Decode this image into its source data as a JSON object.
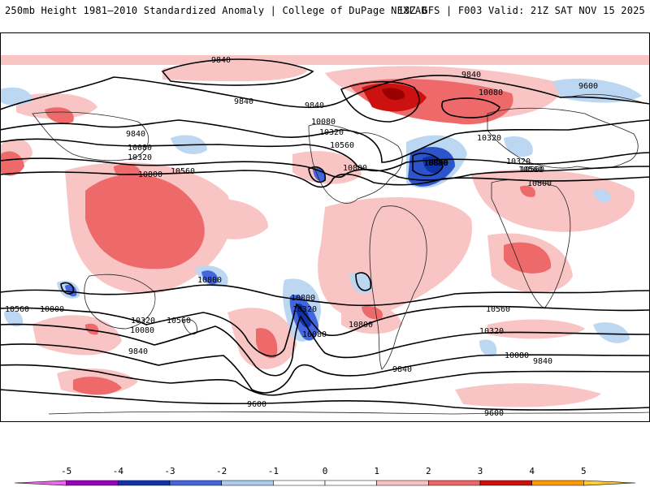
{
  "header": {
    "left": "250mb Height 1981–2010 Standardized Anomaly | College of DuPage NEXLAB",
    "right": "18Z GFS | F003 Valid: 21Z SAT NOV 15 2025"
  },
  "contour_labels": [
    "9840",
    "9840",
    "9840",
    "9840",
    "9600",
    "10080",
    "10320",
    "10560",
    "9840",
    "10080",
    "10320",
    "10560",
    "10800",
    "10800",
    "10080",
    "10320",
    "10560",
    "10800",
    "10320",
    "10080",
    "10560",
    "10800",
    "10800",
    "10560",
    "10800",
    "10800",
    "10560",
    "10320",
    "10080",
    "10320",
    "10080",
    "9840",
    "10560",
    "10800",
    "10560",
    "10320",
    "10080",
    "9840",
    "9840",
    "9600",
    "9600"
  ],
  "colorbar": {
    "ticks": [
      "-5",
      "-4",
      "-3",
      "-2",
      "-1",
      "0",
      "1",
      "2",
      "3",
      "4",
      "5"
    ],
    "colors": [
      "#ee66ee",
      "#9900bb",
      "#1133aa",
      "#4466dd",
      "#aaccee",
      "#ffffff",
      "#ffffff",
      "#f9c0c0",
      "#ee6666",
      "#cc1111",
      "#ff9900",
      "#ffcc33"
    ]
  }
}
